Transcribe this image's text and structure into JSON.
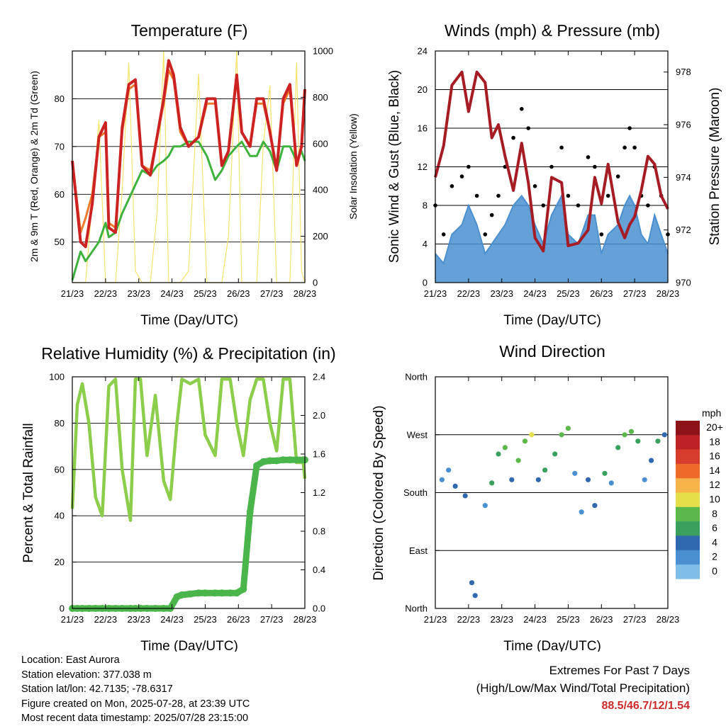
{
  "panels": {
    "temperature": {
      "title": "Temperature (F)",
      "xlabel": "Time (Day/UTC)",
      "ylabel_left": "2m & 9m T (Red, Orange) & 2m Td (Green)",
      "ylabel_right": "Solar Insolation (Yellow)",
      "yticks_left": [
        "50",
        "60",
        "70",
        "80"
      ],
      "yticks_right": [
        "0",
        "200",
        "400",
        "600",
        "800",
        "1000"
      ]
    },
    "winds": {
      "title": "Winds (mph) & Pressure (mb)",
      "xlabel": "Time (Day/UTC)",
      "ylabel_left": "Sonic Wind & Gust (Blue, Black)",
      "ylabel_right": "Station Pressure (Maroon)",
      "yticks_left": [
        "0",
        "4",
        "8",
        "12",
        "16",
        "20",
        "24"
      ],
      "yticks_right": [
        "970",
        "972",
        "974",
        "976",
        "978"
      ]
    },
    "humidity": {
      "title": "Relative Humidity (%) & Precipitation (in)",
      "xlabel": "Time (Day/UTC)",
      "ylabel_left": "Percent & Total Rainfall",
      "yticks_left": [
        "0",
        "20",
        "40",
        "60",
        "80",
        "100"
      ],
      "yticks_right": [
        "0.0",
        "0.4",
        "0.8",
        "1.2",
        "1.6",
        "2.0",
        "2.4"
      ]
    },
    "direction": {
      "title": "Wind Direction",
      "xlabel": "Time (Day/UTC)",
      "ylabel_left": "Direction (Colored By Speed)",
      "yticks_left": [
        "North",
        "East",
        "South",
        "West",
        "North"
      ],
      "legend_title": "mph",
      "legend_labels": [
        "20+",
        "18",
        "16",
        "14",
        "12",
        "10",
        "8",
        "6",
        "4",
        "2",
        "0"
      ]
    }
  },
  "x_tick_labels": [
    "21/23",
    "22/23",
    "23/23",
    "24/23",
    "25/23",
    "26/23",
    "27/23",
    "28/23"
  ],
  "colors": {
    "temp_2m": "#cc2222",
    "temp_9m": "#f07a2a",
    "dewpoint": "#3db33d",
    "solar": "#f6e36a",
    "wind": "#4a90d0",
    "gust": "#000000",
    "pressure": "#a51c24",
    "rh": "#8cce4c",
    "precip": "#4ab54a",
    "extremes": "#cc2a2a",
    "speed_scale": [
      "#a8dcf4",
      "#80bde6",
      "#4a90d0",
      "#3068b0",
      "#3aa05e",
      "#5cb84a",
      "#e5e04a",
      "#f6b44a",
      "#ee6a2a",
      "#d83c2c",
      "#bc2226",
      "#8c1418"
    ]
  },
  "info": {
    "location": "Location: East Aurora",
    "elevation": "Station elevation: 377.038 m",
    "latlon": "Station lat/lon: 42.7135; -78.6317",
    "created": "Figure created on Mon, 2025-07-28, at 23:39 UTC",
    "recent": "Most recent data timestamp: 2025/07/28 23:15:00"
  },
  "extremes": {
    "line1": "Extremes For Past 7 Days",
    "line2": "(High/Low/Max Wind/Total Precipitation)",
    "values": "88.5/46.7/12/1.54"
  },
  "chart_data": [
    {
      "type": "line",
      "title": "Temperature (F)",
      "xlabel": "Time (Day/UTC)",
      "ylabel": "2m & 9m T (Red, Orange) & 2m Td (Green)",
      "ylabel_right": "Solar Insolation (Yellow)",
      "xlim": [
        21,
        28
      ],
      "ylim": [
        41.5,
        90
      ],
      "ylim_right": [
        0,
        1000
      ],
      "x": [
        21.0,
        21.25,
        21.4,
        21.6,
        21.8,
        22.0,
        22.1,
        22.3,
        22.5,
        22.7,
        22.9,
        23.1,
        23.35,
        23.55,
        23.75,
        23.9,
        24.05,
        24.25,
        24.5,
        24.8,
        25.05,
        25.3,
        25.5,
        25.7,
        25.95,
        26.1,
        26.35,
        26.55,
        26.75,
        26.95,
        27.15,
        27.35,
        27.55,
        27.75,
        27.9,
        28.0
      ],
      "series": [
        {
          "name": "2m T",
          "axis": "left",
          "values": [
            67,
            50,
            49,
            58,
            72,
            75,
            53,
            52,
            74,
            83,
            84,
            66,
            64,
            72,
            80,
            88,
            85,
            74,
            70,
            72,
            80,
            80,
            66,
            69,
            85,
            73,
            70,
            80,
            80,
            73,
            65,
            80,
            83,
            66,
            70,
            82
          ]
        },
        {
          "name": "9m T",
          "axis": "left",
          "values": [
            67,
            52,
            55,
            60,
            72,
            73,
            54,
            53,
            73,
            82,
            83,
            66,
            65,
            72,
            79,
            86,
            84,
            73,
            70,
            72,
            79,
            79,
            66,
            69,
            84,
            73,
            70,
            79,
            79,
            73,
            65,
            79,
            82,
            66,
            70,
            81
          ]
        },
        {
          "name": "2m Td",
          "axis": "left",
          "values": [
            42,
            48,
            46,
            48,
            50,
            54,
            51,
            52,
            56,
            59,
            62,
            65,
            64,
            66,
            67,
            68,
            70,
            70,
            71,
            71,
            68,
            63,
            65,
            68,
            70,
            71,
            68,
            68,
            71,
            69,
            65,
            70,
            70,
            67,
            69,
            67
          ]
        },
        {
          "name": "Solar",
          "axis": "right",
          "values": [
            0,
            0,
            0,
            350,
            700,
            0,
            0,
            0,
            400,
            950,
            50,
            0,
            0,
            300,
            1000,
            0,
            0,
            0,
            50,
            900,
            0,
            0,
            0,
            200,
            1000,
            0,
            0,
            0,
            600,
            850,
            0,
            0,
            0,
            950,
            50,
            0
          ]
        }
      ]
    },
    {
      "type": "line",
      "title": "Winds (mph) & Pressure (mb)",
      "xlabel": "Time (Day/UTC)",
      "ylabel": "Sonic Wind & Gust (Blue, Black)",
      "ylabel_right": "Station Pressure (Maroon)",
      "xlim": [
        21,
        28
      ],
      "ylim": [
        0,
        24
      ],
      "ylim_right": [
        970,
        978.8
      ],
      "x": [
        21.0,
        21.25,
        21.5,
        21.8,
        22.0,
        22.25,
        22.5,
        22.7,
        22.9,
        23.1,
        23.35,
        23.6,
        23.8,
        24.0,
        24.25,
        24.5,
        24.8,
        25.0,
        25.3,
        25.6,
        25.8,
        26.0,
        26.2,
        26.5,
        26.7,
        26.85,
        27.0,
        27.2,
        27.4,
        27.6,
        27.8,
        28.0
      ],
      "series": [
        {
          "name": "Sonic Wind",
          "axis": "left",
          "values": [
            3,
            2,
            5,
            6,
            8,
            6,
            3,
            4,
            5,
            6,
            8,
            9,
            8,
            6,
            4,
            7,
            9,
            5,
            4,
            7,
            7,
            3,
            5,
            6,
            8,
            9,
            8,
            5,
            4,
            7,
            5,
            3
          ]
        },
        {
          "name": "Gust",
          "axis": "left",
          "values": [
            8,
            5,
            10,
            11,
            12,
            9,
            5,
            7,
            9,
            12,
            15,
            18,
            16,
            10,
            8,
            12,
            14,
            9,
            8,
            13,
            12,
            5,
            9,
            11,
            14,
            16,
            14,
            9,
            8,
            12,
            9,
            5
          ]
        },
        {
          "name": "Pressure",
          "axis": "right",
          "values": [
            974,
            975.2,
            977.5,
            978,
            976.5,
            978,
            977.6,
            975.5,
            976,
            974.8,
            973.5,
            975.3,
            973.8,
            971.7,
            971.2,
            974,
            973.8,
            971.4,
            971.5,
            972,
            974,
            973,
            974.5,
            972.3,
            971.7,
            972.2,
            972.5,
            973.5,
            974.8,
            974.5,
            973.3,
            972.8
          ]
        }
      ]
    },
    {
      "type": "line",
      "title": "Relative Humidity (%) & Precipitation (in)",
      "xlabel": "Time (Day/UTC)",
      "ylabel": "Percent & Total Rainfall",
      "xlim": [
        21,
        28
      ],
      "ylim": [
        0,
        100
      ],
      "ylim_right": [
        0,
        2.4
      ],
      "x": [
        21.0,
        21.15,
        21.3,
        21.5,
        21.7,
        21.9,
        22.1,
        22.3,
        22.5,
        22.75,
        22.9,
        23.05,
        23.25,
        23.5,
        23.75,
        23.95,
        24.15,
        24.3,
        24.55,
        24.8,
        25.0,
        25.3,
        25.5,
        25.75,
        25.95,
        26.15,
        26.35,
        26.55,
        26.75,
        26.95,
        27.15,
        27.35,
        27.55,
        27.75,
        27.95,
        28.0
      ],
      "series": [
        {
          "name": "Relative Humidity",
          "axis": "left",
          "values": [
            43,
            88,
            97,
            80,
            48,
            40,
            96,
            99,
            60,
            38,
            99,
            99,
            66,
            92,
            55,
            47,
            80,
            99,
            97,
            99,
            75,
            66,
            99,
            99,
            80,
            66,
            90,
            99,
            99,
            80,
            68,
            99,
            99,
            63,
            63,
            56
          ]
        },
        {
          "name": "Total Precipitation",
          "axis": "right",
          "values": [
            0,
            0,
            0,
            0,
            0,
            0,
            0,
            0,
            0,
            0,
            0,
            0,
            0,
            0,
            0,
            0,
            0.12,
            0.14,
            0.15,
            0.16,
            0.16,
            0.16,
            0.16,
            0.16,
            0.16,
            0.2,
            1.0,
            1.48,
            1.52,
            1.53,
            1.53,
            1.54,
            1.54,
            1.54,
            1.54,
            1.54
          ]
        }
      ]
    },
    {
      "type": "scatter",
      "title": "Wind Direction",
      "xlabel": "Time (Day/UTC)",
      "ylabel": "Direction (Colored By Speed)",
      "xlim": [
        21,
        28
      ],
      "ylim": [
        0,
        360
      ],
      "x": [
        21.2,
        21.4,
        21.6,
        21.9,
        22.1,
        22.2,
        22.5,
        22.7,
        22.9,
        23.1,
        23.3,
        23.5,
        23.7,
        23.9,
        24.1,
        24.3,
        24.6,
        24.8,
        25.0,
        25.2,
        25.4,
        25.6,
        25.8,
        26.1,
        26.3,
        26.5,
        26.7,
        26.9,
        27.1,
        27.3,
        27.5,
        27.7,
        27.9
      ],
      "series": [
        {
          "name": "Direction (deg)",
          "values": [
            200,
            215,
            190,
            175,
            40,
            20,
            160,
            195,
            240,
            250,
            200,
            230,
            260,
            270,
            200,
            215,
            240,
            270,
            280,
            210,
            150,
            200,
            160,
            210,
            195,
            250,
            270,
            275,
            260,
            200,
            230,
            260,
            270
          ]
        },
        {
          "name": "Speed (mph)",
          "values": [
            3,
            4,
            5,
            6,
            5,
            6,
            3,
            7,
            8,
            10,
            5,
            9,
            10,
            11,
            6,
            7,
            8,
            10,
            9,
            4,
            3,
            6,
            5,
            7,
            4,
            7,
            9,
            10,
            8,
            4,
            6,
            7,
            5
          ]
        }
      ]
    }
  ]
}
